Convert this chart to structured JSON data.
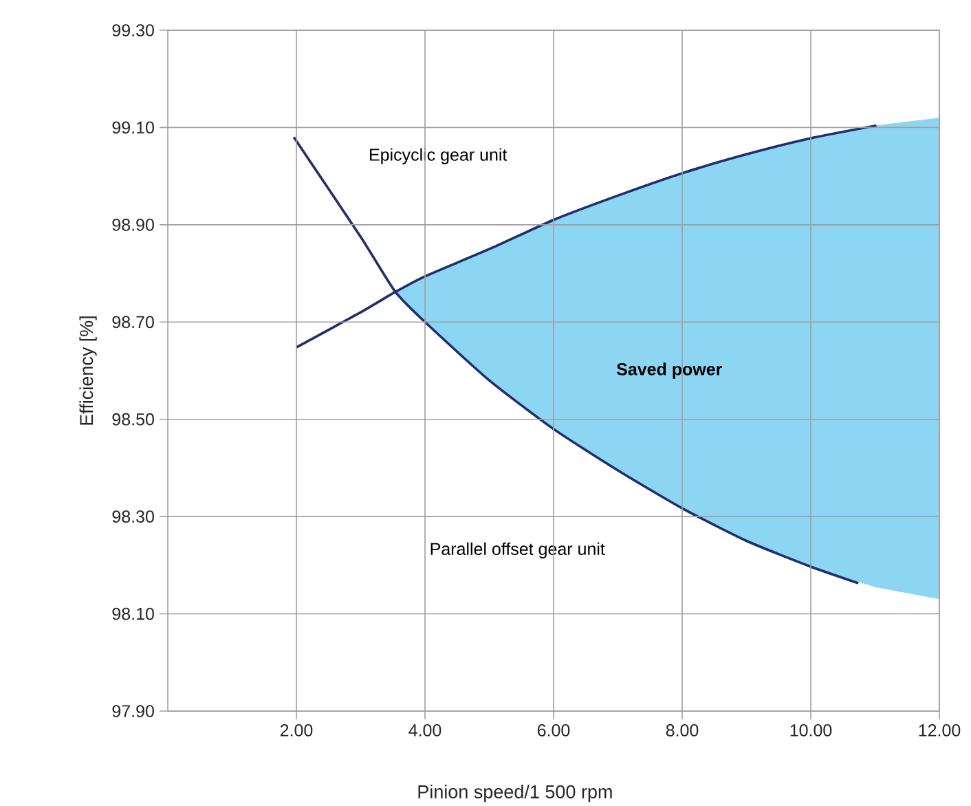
{
  "chart_data": {
    "type": "line",
    "xlabel": "Pinion speed/1 500 rpm",
    "ylabel": "Efficiency [%]",
    "xlim": [
      0,
      12
    ],
    "ylim": [
      97.9,
      99.3
    ],
    "xticks": [
      {
        "value": 2,
        "label": "2.00"
      },
      {
        "value": 4,
        "label": "4.00"
      },
      {
        "value": 6,
        "label": "6.00"
      },
      {
        "value": 8,
        "label": "8.00"
      },
      {
        "value": 10,
        "label": "10.00"
      },
      {
        "value": 12,
        "label": "12.00"
      }
    ],
    "yticks": [
      {
        "value": 97.9,
        "label": "97.90"
      },
      {
        "value": 98.1,
        "label": "98.10"
      },
      {
        "value": 98.3,
        "label": "98.30"
      },
      {
        "value": 98.5,
        "label": "98.50"
      },
      {
        "value": 98.7,
        "label": "98.70"
      },
      {
        "value": 98.9,
        "label": "98.90"
      },
      {
        "value": 99.1,
        "label": "99.10"
      },
      {
        "value": 99.3,
        "label": "99.30"
      }
    ],
    "grid": true,
    "series": [
      {
        "type": "area",
        "color": "#8cd5f3",
        "x": [
          3.54,
          4,
          5,
          6,
          7,
          8,
          9,
          10,
          11,
          12
        ],
        "values": [
          null,
          null,
          null,
          null,
          null,
          null,
          null,
          null,
          null,
          null
        ],
        "lower": [
          98.76,
          98.7,
          98.58,
          98.48,
          98.395,
          98.317,
          98.25,
          98.197,
          98.155,
          98.13
        ],
        "upper": [
          98.76,
          98.794,
          98.85,
          98.91,
          98.96,
          99.006,
          99.045,
          99.078,
          99.104,
          99.12
        ]
      },
      {
        "color": "#1f2f6e",
        "x": [
          2,
          3,
          3.54,
          4,
          5,
          6,
          7,
          8,
          9,
          10,
          11.02
        ],
        "values": [
          98.648,
          98.72,
          98.762,
          98.794,
          98.85,
          98.91,
          98.96,
          99.006,
          99.045,
          99.078,
          99.104
        ]
      },
      {
        "color": "#1f2f6e",
        "x": [
          1.96,
          3,
          3.54,
          4,
          5,
          6,
          7,
          8,
          9,
          10,
          10.74
        ],
        "values": [
          99.08,
          98.875,
          98.762,
          98.7,
          98.58,
          98.48,
          98.395,
          98.317,
          98.25,
          98.197,
          98.163
        ]
      }
    ],
    "annotations": [
      "Epicyclic gear unit",
      "Parallel offset gear unit",
      "Saved power"
    ]
  }
}
